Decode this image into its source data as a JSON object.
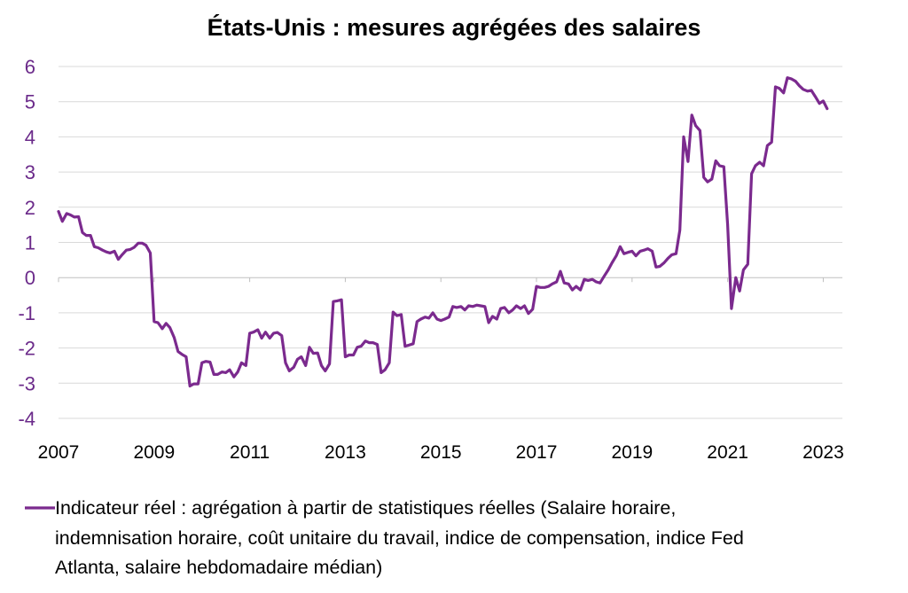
{
  "chart_data": {
    "type": "line",
    "title": "États-Unis : mesures agrégées des salaires",
    "xlabel": "",
    "ylabel": "",
    "xlim": [
      2007,
      2023.4
    ],
    "ylim": [
      -4,
      6
    ],
    "yticks": [
      "6",
      "5",
      "4",
      "3",
      "2",
      "1",
      "0",
      "-1",
      "-2",
      "-3",
      "-4"
    ],
    "xticks": [
      "2007",
      "2009",
      "2011",
      "2013",
      "2015",
      "2017",
      "2019",
      "2021",
      "2023"
    ],
    "grid": true,
    "legend_position": "bottom",
    "colors": {
      "series": "#7b2a8e",
      "ytick": "#6b2a8a",
      "grid": "#d9d9d9"
    },
    "legend": {
      "lines": [
        "Indicateur réel : agrégation à partir de statistiques réelles (Salaire horaire,",
        "indemnisation horaire, coût unitaire du travail, indice de compensation, indice Fed",
        "Atlanta, salaire hebdomadaire médian)"
      ]
    },
    "series": [
      {
        "name": "Indicateur réel : agrégation à partir de statistiques réelles (Salaire horaire, indemnisation horaire, coût unitaire du travail, indice de compensation, indice Fed Atlanta, salaire hebdomadaire médian)",
        "points": [
          [
            2007.0,
            1.88
          ],
          [
            2007.08,
            1.6
          ],
          [
            2007.17,
            1.82
          ],
          [
            2007.25,
            1.78
          ],
          [
            2007.33,
            1.72
          ],
          [
            2007.42,
            1.73
          ],
          [
            2007.5,
            1.28
          ],
          [
            2007.58,
            1.2
          ],
          [
            2007.67,
            1.2
          ],
          [
            2007.75,
            0.88
          ],
          [
            2007.83,
            0.85
          ],
          [
            2007.92,
            0.78
          ],
          [
            2008.0,
            0.73
          ],
          [
            2008.08,
            0.7
          ],
          [
            2008.17,
            0.75
          ],
          [
            2008.25,
            0.52
          ],
          [
            2008.33,
            0.65
          ],
          [
            2008.42,
            0.78
          ],
          [
            2008.5,
            0.8
          ],
          [
            2008.58,
            0.86
          ],
          [
            2008.67,
            0.98
          ],
          [
            2008.75,
            0.98
          ],
          [
            2008.83,
            0.92
          ],
          [
            2008.92,
            0.7
          ],
          [
            2009.0,
            -1.25
          ],
          [
            2009.08,
            -1.28
          ],
          [
            2009.17,
            -1.45
          ],
          [
            2009.25,
            -1.3
          ],
          [
            2009.33,
            -1.42
          ],
          [
            2009.42,
            -1.7
          ],
          [
            2009.5,
            -2.1
          ],
          [
            2009.58,
            -2.18
          ],
          [
            2009.67,
            -2.25
          ],
          [
            2009.75,
            -3.08
          ],
          [
            2009.83,
            -3.02
          ],
          [
            2009.92,
            -3.02
          ],
          [
            2010.0,
            -2.42
          ],
          [
            2010.08,
            -2.38
          ],
          [
            2010.17,
            -2.4
          ],
          [
            2010.25,
            -2.75
          ],
          [
            2010.33,
            -2.75
          ],
          [
            2010.42,
            -2.68
          ],
          [
            2010.5,
            -2.7
          ],
          [
            2010.58,
            -2.62
          ],
          [
            2010.67,
            -2.82
          ],
          [
            2010.75,
            -2.68
          ],
          [
            2010.83,
            -2.42
          ],
          [
            2010.92,
            -2.5
          ],
          [
            2011.0,
            -1.58
          ],
          [
            2011.08,
            -1.55
          ],
          [
            2011.17,
            -1.48
          ],
          [
            2011.25,
            -1.72
          ],
          [
            2011.33,
            -1.55
          ],
          [
            2011.42,
            -1.72
          ],
          [
            2011.5,
            -1.58
          ],
          [
            2011.58,
            -1.56
          ],
          [
            2011.67,
            -1.65
          ],
          [
            2011.75,
            -2.42
          ],
          [
            2011.83,
            -2.65
          ],
          [
            2011.92,
            -2.55
          ],
          [
            2012.0,
            -2.32
          ],
          [
            2012.08,
            -2.25
          ],
          [
            2012.17,
            -2.5
          ],
          [
            2012.25,
            -1.98
          ],
          [
            2012.33,
            -2.15
          ],
          [
            2012.42,
            -2.14
          ],
          [
            2012.5,
            -2.5
          ],
          [
            2012.58,
            -2.65
          ],
          [
            2012.67,
            -2.45
          ],
          [
            2012.75,
            -0.68
          ],
          [
            2012.83,
            -0.66
          ],
          [
            2012.92,
            -0.63
          ],
          [
            2013.0,
            -2.25
          ],
          [
            2013.08,
            -2.2
          ],
          [
            2013.17,
            -2.2
          ],
          [
            2013.25,
            -1.98
          ],
          [
            2013.33,
            -1.95
          ],
          [
            2013.42,
            -1.8
          ],
          [
            2013.5,
            -1.85
          ],
          [
            2013.58,
            -1.85
          ],
          [
            2013.67,
            -1.9
          ],
          [
            2013.75,
            -2.7
          ],
          [
            2013.83,
            -2.62
          ],
          [
            2013.92,
            -2.42
          ],
          [
            2014.0,
            -0.98
          ],
          [
            2014.08,
            -1.08
          ],
          [
            2014.17,
            -1.05
          ],
          [
            2014.25,
            -1.95
          ],
          [
            2014.33,
            -1.92
          ],
          [
            2014.42,
            -1.88
          ],
          [
            2014.5,
            -1.25
          ],
          [
            2014.58,
            -1.18
          ],
          [
            2014.67,
            -1.12
          ],
          [
            2014.75,
            -1.15
          ],
          [
            2014.83,
            -1.0
          ],
          [
            2014.92,
            -1.18
          ],
          [
            2015.0,
            -1.22
          ],
          [
            2015.08,
            -1.18
          ],
          [
            2015.17,
            -1.12
          ],
          [
            2015.25,
            -0.82
          ],
          [
            2015.33,
            -0.85
          ],
          [
            2015.42,
            -0.82
          ],
          [
            2015.5,
            -0.92
          ],
          [
            2015.58,
            -0.8
          ],
          [
            2015.67,
            -0.82
          ],
          [
            2015.75,
            -0.78
          ],
          [
            2015.83,
            -0.8
          ],
          [
            2015.92,
            -0.82
          ],
          [
            2016.0,
            -1.28
          ],
          [
            2016.08,
            -1.1
          ],
          [
            2016.17,
            -1.18
          ],
          [
            2016.25,
            -0.88
          ],
          [
            2016.33,
            -0.85
          ],
          [
            2016.42,
            -1.0
          ],
          [
            2016.5,
            -0.92
          ],
          [
            2016.58,
            -0.8
          ],
          [
            2016.67,
            -0.88
          ],
          [
            2016.75,
            -0.8
          ],
          [
            2016.83,
            -1.02
          ],
          [
            2016.92,
            -0.9
          ],
          [
            2017.0,
            -0.25
          ],
          [
            2017.08,
            -0.28
          ],
          [
            2017.17,
            -0.28
          ],
          [
            2017.25,
            -0.25
          ],
          [
            2017.33,
            -0.18
          ],
          [
            2017.42,
            -0.12
          ],
          [
            2017.5,
            0.18
          ],
          [
            2017.58,
            -0.15
          ],
          [
            2017.67,
            -0.18
          ],
          [
            2017.75,
            -0.35
          ],
          [
            2017.83,
            -0.25
          ],
          [
            2017.92,
            -0.35
          ],
          [
            2018.0,
            -0.05
          ],
          [
            2018.08,
            -0.08
          ],
          [
            2018.17,
            -0.05
          ],
          [
            2018.25,
            -0.12
          ],
          [
            2018.33,
            -0.15
          ],
          [
            2018.42,
            0.05
          ],
          [
            2018.5,
            0.22
          ],
          [
            2018.58,
            0.42
          ],
          [
            2018.67,
            0.62
          ],
          [
            2018.75,
            0.88
          ],
          [
            2018.83,
            0.68
          ],
          [
            2018.92,
            0.72
          ],
          [
            2019.0,
            0.75
          ],
          [
            2019.08,
            0.62
          ],
          [
            2019.17,
            0.75
          ],
          [
            2019.25,
            0.78
          ],
          [
            2019.33,
            0.82
          ],
          [
            2019.42,
            0.75
          ],
          [
            2019.5,
            0.3
          ],
          [
            2019.58,
            0.32
          ],
          [
            2019.67,
            0.42
          ],
          [
            2019.75,
            0.55
          ],
          [
            2019.83,
            0.65
          ],
          [
            2019.92,
            0.68
          ],
          [
            2020.0,
            1.35
          ],
          [
            2020.08,
            4.0
          ],
          [
            2020.17,
            3.3
          ],
          [
            2020.25,
            4.62
          ],
          [
            2020.33,
            4.32
          ],
          [
            2020.42,
            4.18
          ],
          [
            2020.5,
            2.85
          ],
          [
            2020.58,
            2.72
          ],
          [
            2020.67,
            2.8
          ],
          [
            2020.75,
            3.32
          ],
          [
            2020.83,
            3.18
          ],
          [
            2020.92,
            3.15
          ],
          [
            2021.0,
            1.5
          ],
          [
            2021.08,
            -0.88
          ],
          [
            2021.17,
            0.0
          ],
          [
            2021.25,
            -0.38
          ],
          [
            2021.33,
            0.22
          ],
          [
            2021.42,
            0.38
          ],
          [
            2021.5,
            2.95
          ],
          [
            2021.58,
            3.18
          ],
          [
            2021.67,
            3.28
          ],
          [
            2021.75,
            3.18
          ],
          [
            2021.83,
            3.75
          ],
          [
            2021.92,
            3.85
          ],
          [
            2022.0,
            5.42
          ],
          [
            2022.08,
            5.38
          ],
          [
            2022.17,
            5.25
          ],
          [
            2022.25,
            5.68
          ],
          [
            2022.33,
            5.65
          ],
          [
            2022.42,
            5.58
          ],
          [
            2022.5,
            5.45
          ],
          [
            2022.58,
            5.35
          ],
          [
            2022.67,
            5.3
          ],
          [
            2022.75,
            5.32
          ],
          [
            2022.83,
            5.15
          ],
          [
            2022.92,
            4.95
          ],
          [
            2023.0,
            5.02
          ],
          [
            2023.08,
            4.8
          ]
        ]
      }
    ]
  }
}
